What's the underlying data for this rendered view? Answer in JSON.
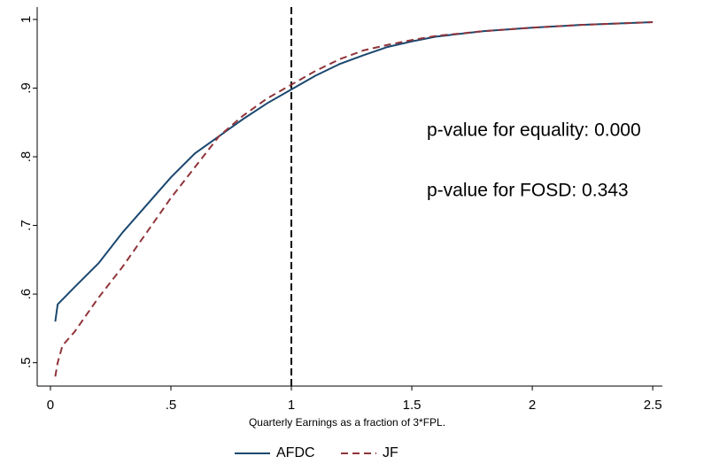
{
  "chart_data": {
    "type": "line",
    "xlabel": "Quarterly Earnings as a fraction of 3*FPL.",
    "xlim": [
      -0.055,
      2.54
    ],
    "ylim": [
      0.466,
      1.018
    ],
    "xticks": [
      0,
      {
        "value": 0.5,
        "label": ".5"
      },
      1,
      1.5,
      2,
      2.5
    ],
    "yticks": [
      {
        "value": 0.5,
        "label": ".5"
      },
      {
        "value": 0.6,
        "label": ".6"
      },
      {
        "value": 0.7,
        "label": ".7"
      },
      {
        "value": 0.8,
        "label": ".8"
      },
      {
        "value": 0.9,
        "label": ".9"
      },
      1
    ],
    "vline": 1,
    "annotations": [
      "p-value for equality: 0.000",
      "p-value for FOSD: 0.343"
    ],
    "series": [
      {
        "name": "AFDC",
        "color": "#1a476f",
        "dash": false,
        "x": [
          0.02,
          0.03,
          0.1,
          0.2,
          0.3,
          0.4,
          0.5,
          0.6,
          0.7,
          0.8,
          0.9,
          1.0,
          1.1,
          1.2,
          1.3,
          1.4,
          1.5,
          1.6,
          1.8,
          2.0,
          2.2,
          2.5
        ],
        "values": [
          0.56,
          0.585,
          0.61,
          0.645,
          0.69,
          0.73,
          0.77,
          0.805,
          0.83,
          0.855,
          0.878,
          0.898,
          0.918,
          0.935,
          0.948,
          0.96,
          0.968,
          0.975,
          0.983,
          0.988,
          0.992,
          0.996
        ]
      },
      {
        "name": "JF",
        "color": "#90353b",
        "dash": true,
        "x": [
          0.02,
          0.03,
          0.05,
          0.1,
          0.15,
          0.2,
          0.3,
          0.4,
          0.5,
          0.6,
          0.7,
          0.8,
          0.9,
          1.0,
          1.1,
          1.2,
          1.3,
          1.4,
          1.5,
          1.6,
          1.8,
          2.0,
          2.2,
          2.5
        ],
        "values": [
          0.48,
          0.5,
          0.525,
          0.545,
          0.57,
          0.595,
          0.64,
          0.69,
          0.74,
          0.785,
          0.83,
          0.86,
          0.885,
          0.905,
          0.925,
          0.942,
          0.955,
          0.963,
          0.97,
          0.976,
          0.983,
          0.988,
          0.992,
          0.996
        ]
      }
    ]
  }
}
